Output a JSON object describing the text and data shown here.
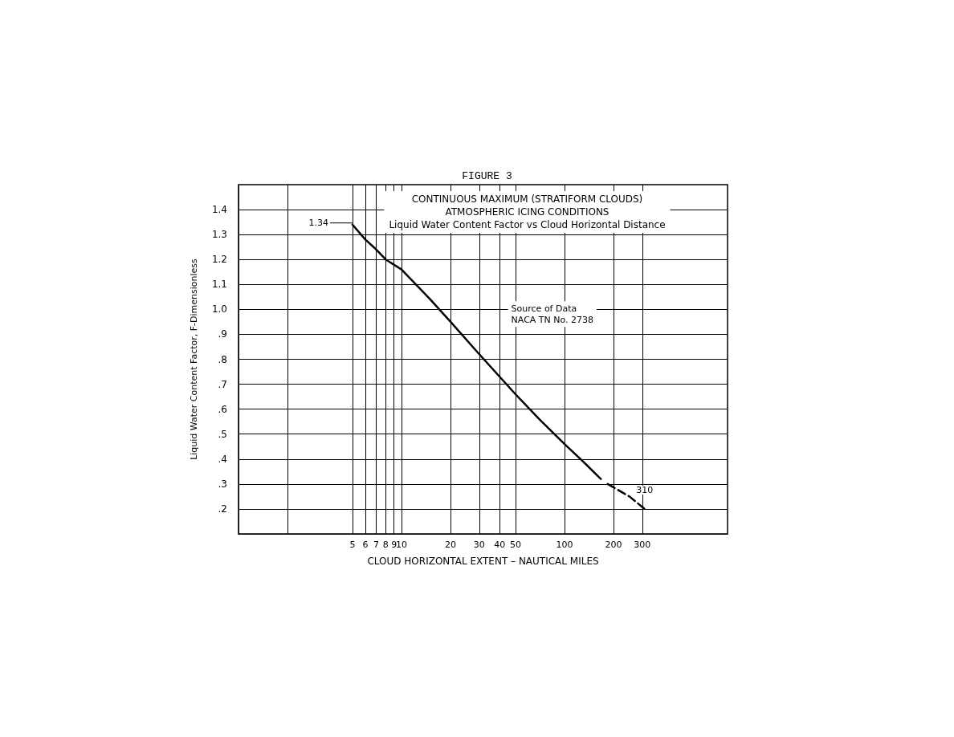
{
  "chart_data": {
    "type": "line",
    "title": "FIGURE 3",
    "subtitle": "CONTINUOUS MAXIMUM (STRATIFORM CLOUDS)\nATMOSPHERIC ICING CONDITIONS\nLiquid Water Content Factor vs Cloud Horizontal Distance",
    "xlabel": "CLOUD HORIZONTAL EXTENT – NAUTICAL MILES",
    "ylabel": "Liquid Water Content Factor, F-Dimensionless",
    "log": "x",
    "xlim": [
      1,
      1000
    ],
    "xticks": [
      {
        "value": 2,
        "label": null
      },
      5,
      6,
      7,
      8,
      9,
      10,
      20,
      30,
      40,
      50,
      100,
      200,
      300
    ],
    "ylim": [
      0.1,
      1.5
    ],
    "yticks": [
      {
        "value": 0.2,
        "label": ".2"
      },
      {
        "value": 0.3,
        "label": ".3"
      },
      {
        "value": 0.4,
        "label": ".4"
      },
      {
        "value": 0.5,
        "label": ".5"
      },
      {
        "value": 0.6,
        "label": ".6"
      },
      {
        "value": 0.7,
        "label": ".7"
      },
      {
        "value": 0.8,
        "label": ".8"
      },
      {
        "value": 0.9,
        "label": ".9"
      },
      {
        "value": 1,
        "label": "1.0"
      },
      1.1,
      1.2,
      1.3,
      1.4
    ],
    "grid": true,
    "marker": "none",
    "series": [
      {
        "color": "#000000",
        "line_style": "solid",
        "x": [
          5,
          6,
          7,
          8,
          10,
          15,
          20,
          30,
          40,
          50,
          70,
          100,
          130,
          167
        ],
        "values": [
          1.34,
          1.28,
          1.24,
          1.2,
          1.16,
          1.04,
          0.95,
          0.82,
          0.73,
          0.66,
          0.56,
          0.46,
          0.39,
          0.32
        ]
      },
      {
        "color": "#000000",
        "line_style": "dashed",
        "x": [
          184,
          250,
          310
        ],
        "values": [
          0.3,
          0.25,
          0.2
        ]
      }
    ],
    "annotations": [
      {
        "text": "1.34",
        "x": 5,
        "y": 1.34
      },
      {
        "text": "310",
        "x": 310,
        "y": 0.2
      },
      "Source of Data\nNACA TN No. 2738"
    ]
  }
}
